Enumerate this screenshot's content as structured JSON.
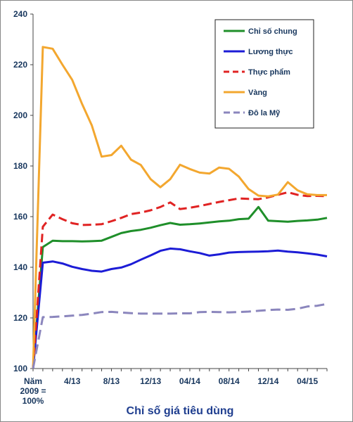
{
  "chart_data": {
    "type": "line",
    "title": "Chỉ số giá tiêu dùng",
    "ylim": [
      100,
      240
    ],
    "y_ticks": [
      "100",
      "120",
      "140",
      "160",
      "180",
      "200",
      "220",
      "240"
    ],
    "x_tick_labels": [
      {
        "index": 0,
        "lines": [
          "Năm",
          "2009 =",
          "100%"
        ]
      },
      {
        "index": 4,
        "lines": [
          "4/13"
        ]
      },
      {
        "index": 8,
        "lines": [
          "8/13"
        ]
      },
      {
        "index": 12,
        "lines": [
          "12/13"
        ]
      },
      {
        "index": 16,
        "lines": [
          "04/14"
        ]
      },
      {
        "index": 20,
        "lines": [
          "08/14"
        ]
      },
      {
        "index": 24,
        "lines": [
          "12/14"
        ]
      },
      {
        "index": 28,
        "lines": [
          "04/15"
        ]
      }
    ],
    "legend_position": "top-right",
    "grid": false,
    "series": [
      {
        "name": "Chỉ số chung",
        "color": "#1f8f2a",
        "dash": "solid",
        "values": [
          100,
          148,
          150.5,
          150.3,
          150.3,
          150.2,
          150.3,
          150.5,
          152,
          153.5,
          154.3,
          154.8,
          155.6,
          156.6,
          157.5,
          156.8,
          157,
          157.3,
          157.7,
          158.1,
          158.4,
          159,
          159.2,
          163.8,
          158.4,
          158.2,
          158,
          158.3,
          158.5,
          158.8,
          159.5
        ]
      },
      {
        "name": "Lương thực",
        "color": "#1c1cd6",
        "dash": "solid",
        "values": [
          100,
          141.8,
          142.3,
          141.5,
          140.2,
          139.3,
          138.6,
          138.3,
          139.3,
          139.9,
          141.2,
          143,
          144.7,
          146.5,
          147.4,
          147.1,
          146.3,
          145.6,
          144.6,
          145.1,
          145.8,
          146,
          146.1,
          146.2,
          146.3,
          146.6,
          146.2,
          145.9,
          145.5,
          145,
          144.3
        ]
      },
      {
        "name": "Thực phẩm",
        "color": "#e02323",
        "dash": "dash",
        "values": [
          100,
          156,
          160.8,
          159,
          157.4,
          156.7,
          156.8,
          157,
          158.2,
          159.5,
          161,
          161.6,
          162.5,
          163.8,
          165.6,
          163,
          163.5,
          164.2,
          165,
          165.8,
          166.5,
          167.2,
          167,
          166.9,
          167.6,
          168.6,
          169.6,
          168.6,
          168.1,
          168.2,
          168.1
        ]
      },
      {
        "name": "Vàng",
        "color": "#f3a72f",
        "dash": "solid",
        "values": [
          100,
          227,
          226.3,
          220,
          214,
          204.5,
          196,
          183.7,
          184.3,
          188,
          182.5,
          180.4,
          174.8,
          171.6,
          174.8,
          180.5,
          178.8,
          177.4,
          177,
          179.4,
          178.9,
          175.8,
          170.9,
          168.3,
          168,
          168.7,
          173.6,
          170.4,
          168.8,
          168.5,
          168.5
        ]
      },
      {
        "name": "Đô la Mỹ",
        "color": "#8b86bd",
        "dash": "longdash",
        "values": [
          100,
          120.3,
          120.4,
          120.6,
          120.9,
          121.2,
          121.7,
          122.3,
          122.4,
          122.1,
          121.9,
          121.7,
          121.7,
          121.7,
          121.7,
          121.8,
          121.8,
          122.3,
          122.4,
          122.3,
          122.2,
          122.3,
          122.5,
          122.8,
          123.1,
          123.3,
          123.2,
          123.6,
          124.5,
          124.8,
          125.5
        ]
      }
    ]
  }
}
